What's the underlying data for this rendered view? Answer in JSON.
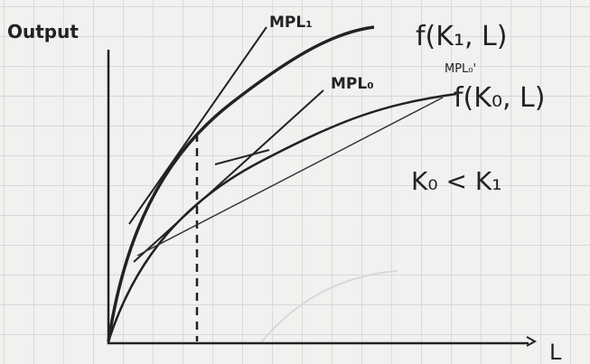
{
  "axes": {
    "y_label": "Output",
    "x_label": "L"
  },
  "labels": {
    "mpl1": "MPL₁",
    "f_k1": "f(K₁, L)",
    "mpl0": "MPL₀",
    "mpl0_prime": "MPL₀'",
    "f_k0": "f(K₀, L)",
    "relation": "K₀ < K₁"
  }
}
